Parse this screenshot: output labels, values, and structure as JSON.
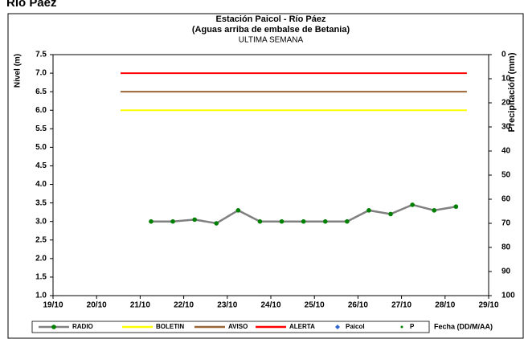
{
  "header": {
    "title": "Río Páez"
  },
  "chart_data": {
    "type": "line",
    "title": "Estación Paicol - Río Páez",
    "subtitle": "(Aguas arriba de embalse de Betania)",
    "period": "ULTIMA SEMANA",
    "y_label": "Nivel (m)",
    "y2_label": "Precipitación (mm)",
    "x_label": "Fecha (DD/M/AA)",
    "xlim": [
      19,
      29
    ],
    "xticks": [
      {
        "value": 19,
        "label": "19/10"
      },
      {
        "value": 20,
        "label": "20/10"
      },
      {
        "value": 21,
        "label": "21/10"
      },
      {
        "value": 22,
        "label": "22/10"
      },
      {
        "value": 23,
        "label": "23/10"
      },
      {
        "value": 24,
        "label": "24/10"
      },
      {
        "value": 25,
        "label": "25/10"
      },
      {
        "value": 26,
        "label": "26/10"
      },
      {
        "value": 27,
        "label": "27/10"
      },
      {
        "value": 28,
        "label": "28/10"
      },
      {
        "value": 29,
        "label": "29/10"
      }
    ],
    "ylim": [
      1.0,
      7.5
    ],
    "yticks": [
      {
        "value": 1,
        "label": "1.0"
      },
      1.5,
      {
        "value": 2,
        "label": "2.0"
      },
      2.5,
      {
        "value": 3,
        "label": "3.0"
      },
      3.5,
      {
        "value": 4,
        "label": "4.0"
      },
      4.5,
      {
        "value": 5,
        "label": "5.0"
      },
      5.5,
      {
        "value": 6,
        "label": "6.0"
      },
      6.5,
      {
        "value": 7,
        "label": "7.0"
      },
      7.5
    ],
    "y2lim": [
      0,
      100
    ],
    "y2ticks": [
      0,
      10,
      20,
      30,
      40,
      50,
      60,
      70,
      80,
      90,
      100
    ],
    "y2_inverted": true,
    "grid": false,
    "series": [
      {
        "name": "RADIO",
        "color": "#808080",
        "marker_color": "#008000",
        "x": [
          21.25,
          21.75,
          22.25,
          22.75,
          23.25,
          23.75,
          24.25,
          24.75,
          25.25,
          25.75,
          26.25,
          26.75,
          27.25,
          27.75,
          28.25
        ],
        "values": [
          3.0,
          3.0,
          3.05,
          2.95,
          3.3,
          3.0,
          3.0,
          3.0,
          3.0,
          3.0,
          3.3,
          3.2,
          3.45,
          3.3,
          3.4
        ]
      },
      {
        "name": "BOLETIN",
        "color": "#ffff00",
        "x": [
          20.55,
          28.5
        ],
        "values": [
          6.0,
          6.0
        ]
      },
      {
        "name": "AVISO",
        "color": "#996633",
        "x": [
          20.55,
          28.5
        ],
        "values": [
          6.5,
          6.5
        ]
      },
      {
        "name": "ALERTA",
        "color": "#ff0000",
        "x": [
          20.55,
          28.5
        ],
        "values": [
          7.0,
          7.0
        ]
      },
      {
        "name": "Paicol",
        "color": "#3366cc",
        "x": [],
        "values": [],
        "axis": "y2"
      },
      {
        "name": "P",
        "color": "#008000",
        "x": [],
        "values": [],
        "axis": "y2"
      }
    ]
  }
}
